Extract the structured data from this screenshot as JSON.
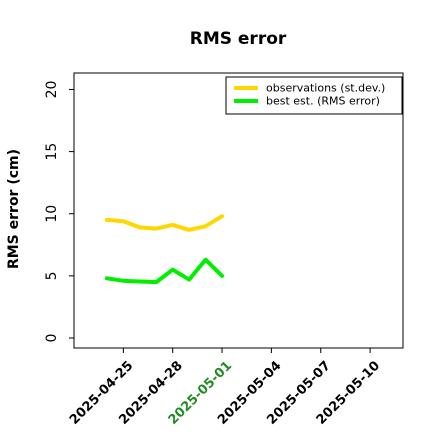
{
  "chart_data": {
    "type": "line",
    "title": "RMS error",
    "xlabel": "",
    "ylabel": "RMS error (cm)",
    "ylim": [
      0,
      21
    ],
    "xlim": [
      "2025-04-22",
      "2025-05-12"
    ],
    "y_ticks": [
      "0",
      "5",
      "10",
      "15",
      "20"
    ],
    "x_ticks": [
      {
        "label": "2025-04-25",
        "color": "#000000"
      },
      {
        "label": "2025-04-28",
        "color": "#000000"
      },
      {
        "label": "2025-05-01",
        "color": "#228B22"
      },
      {
        "label": "2025-05-04",
        "color": "#000000"
      },
      {
        "label": "2025-05-07",
        "color": "#000000"
      },
      {
        "label": "2025-05-10",
        "color": "#000000"
      }
    ],
    "x": [
      "2025-04-24",
      "2025-04-25",
      "2025-04-26",
      "2025-04-27",
      "2025-04-28",
      "2025-04-29",
      "2025-04-30",
      "2025-05-01"
    ],
    "series": [
      {
        "name": "observations (st.dev.)",
        "color": "#FFD700",
        "values": [
          9.5,
          9.4,
          8.9,
          8.8,
          9.1,
          8.7,
          9.0,
          9.8
        ]
      },
      {
        "name": "best est. (RMS error)",
        "color": "#00EE00",
        "values": [
          4.8,
          4.6,
          4.55,
          4.5,
          5.5,
          4.7,
          6.3,
          5.0
        ]
      }
    ],
    "legend_position": "top-right",
    "grid": false
  }
}
